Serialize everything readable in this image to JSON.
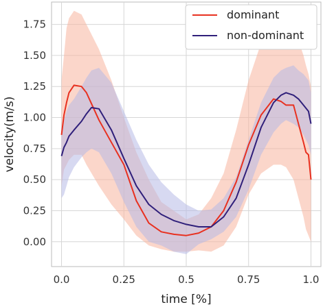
{
  "chart_data": {
    "type": "line",
    "xlabel": "time [%]",
    "ylabel": "velocity(m/s)",
    "xlim": [
      -0.04,
      1.04
    ],
    "ylim": [
      -0.2,
      1.93
    ],
    "xticks": [
      0,
      0.25,
      0.5,
      0.75,
      1.0
    ],
    "xtick_labels": [
      "0.0",
      "0.25",
      "0.5",
      "0.75",
      "1.0"
    ],
    "yticks": [
      0,
      0.25,
      0.5,
      0.75,
      1.0,
      1.25,
      1.5,
      1.75
    ],
    "ytick_labels": [
      "0.00",
      "0.25",
      "0.50",
      "0.75",
      "1.00",
      "1.25",
      "1.50",
      "1.75"
    ],
    "grid": true,
    "legend_position": "top-right",
    "series": [
      {
        "name": "dominant",
        "color": "#e8301f",
        "band_color": "#f7b59e",
        "x": [
          0,
          0.01,
          0.02,
          0.03,
          0.05,
          0.08,
          0.1,
          0.15,
          0.2,
          0.25,
          0.3,
          0.35,
          0.4,
          0.45,
          0.5,
          0.55,
          0.6,
          0.65,
          0.7,
          0.75,
          0.8,
          0.85,
          0.88,
          0.9,
          0.93,
          0.95,
          0.97,
          0.98,
          0.99,
          1.0
        ],
        "values": [
          0.86,
          1.02,
          1.12,
          1.2,
          1.26,
          1.25,
          1.2,
          0.98,
          0.8,
          0.62,
          0.33,
          0.15,
          0.08,
          0.06,
          0.05,
          0.07,
          0.12,
          0.25,
          0.48,
          0.78,
          1.02,
          1.15,
          1.13,
          1.1,
          1.1,
          0.95,
          0.8,
          0.72,
          0.7,
          0.5
        ],
        "upper": [
          1.3,
          1.5,
          1.72,
          1.8,
          1.86,
          1.83,
          1.75,
          1.55,
          1.3,
          1.0,
          0.72,
          0.5,
          0.32,
          0.25,
          0.18,
          0.22,
          0.35,
          0.55,
          0.9,
          1.3,
          1.6,
          1.7,
          1.75,
          1.76,
          1.72,
          1.62,
          1.5,
          1.42,
          1.35,
          1.25
        ],
        "lower": [
          0.45,
          0.58,
          0.62,
          0.66,
          0.7,
          0.7,
          0.62,
          0.45,
          0.3,
          0.18,
          0.05,
          -0.03,
          -0.06,
          -0.08,
          -0.08,
          -0.07,
          -0.08,
          -0.03,
          0.12,
          0.38,
          0.55,
          0.62,
          0.62,
          0.6,
          0.5,
          0.35,
          0.2,
          0.1,
          0.05,
          0.0
        ]
      },
      {
        "name": "non-dominant",
        "color": "#2f1f7a",
        "band_color": "#b7b9e6",
        "x": [
          0,
          0.01,
          0.02,
          0.03,
          0.05,
          0.08,
          0.1,
          0.12,
          0.15,
          0.2,
          0.25,
          0.3,
          0.35,
          0.4,
          0.45,
          0.5,
          0.55,
          0.6,
          0.65,
          0.7,
          0.75,
          0.8,
          0.85,
          0.88,
          0.9,
          0.93,
          0.95,
          0.97,
          0.99,
          1.0
        ],
        "values": [
          0.69,
          0.76,
          0.8,
          0.85,
          0.9,
          0.97,
          1.03,
          1.08,
          1.07,
          0.9,
          0.67,
          0.45,
          0.3,
          0.22,
          0.17,
          0.14,
          0.12,
          0.12,
          0.2,
          0.35,
          0.62,
          0.92,
          1.12,
          1.18,
          1.2,
          1.18,
          1.15,
          1.1,
          1.05,
          0.95
        ],
        "upper": [
          0.92,
          0.98,
          1.05,
          1.1,
          1.15,
          1.25,
          1.32,
          1.38,
          1.4,
          1.28,
          1.05,
          0.82,
          0.62,
          0.48,
          0.38,
          0.3,
          0.25,
          0.26,
          0.35,
          0.52,
          0.82,
          1.12,
          1.32,
          1.38,
          1.4,
          1.42,
          1.38,
          1.35,
          1.3,
          1.2
        ],
        "lower": [
          0.35,
          0.38,
          0.45,
          0.52,
          0.6,
          0.68,
          0.72,
          0.75,
          0.72,
          0.55,
          0.32,
          0.12,
          0.0,
          -0.03,
          -0.08,
          -0.1,
          -0.02,
          0.02,
          0.08,
          0.2,
          0.42,
          0.7,
          0.88,
          0.95,
          0.98,
          0.95,
          0.92,
          0.86,
          0.78,
          0.7
        ]
      }
    ]
  }
}
